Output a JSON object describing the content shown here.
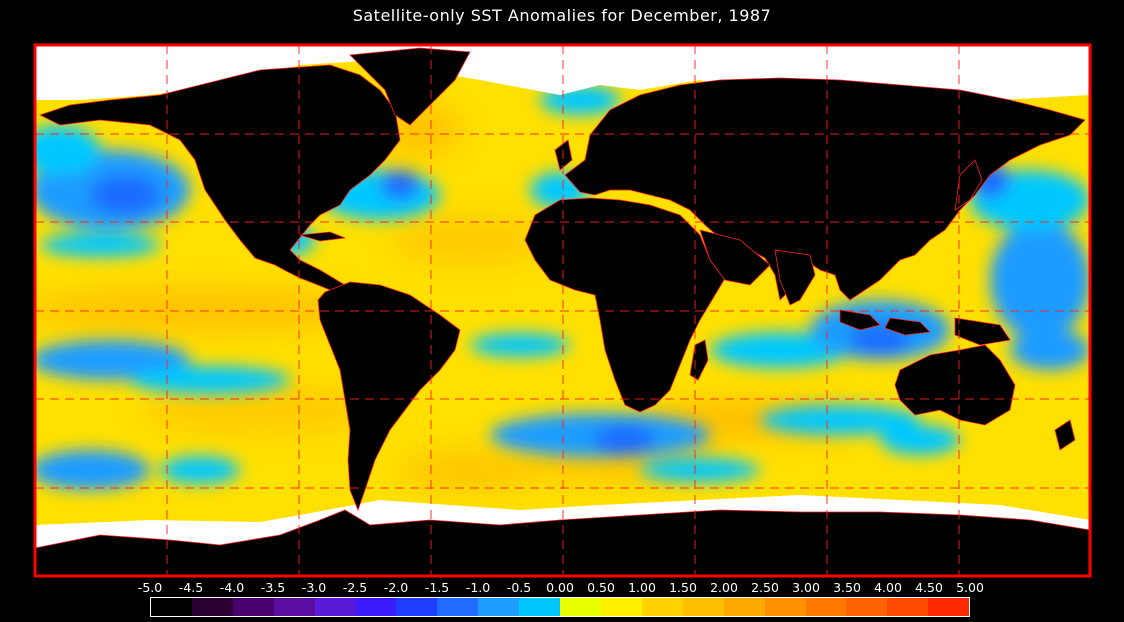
{
  "title": "Satellite-only SST Anomalies for December, 1987",
  "legend": {
    "labels": [
      "-5.0",
      "-4.5",
      "-4.0",
      "-3.5",
      "-3.0",
      "-2.5",
      "-2.0",
      "-1.5",
      "-1.0",
      "-0.5",
      "0.00",
      "0.50",
      "1.00",
      "1.50",
      "2.00",
      "2.50",
      "3.00",
      "3.50",
      "4.00",
      "4.50",
      "5.00"
    ],
    "colors": [
      "#000000",
      "#2a0033",
      "#4b0070",
      "#5a0fa0",
      "#5a1bd8",
      "#3a1cff",
      "#1f3dff",
      "#1f6cff",
      "#1f9cff",
      "#00c8ff",
      "#e8ff00",
      "#fff000",
      "#ffd200",
      "#ffbe00",
      "#ffa800",
      "#ff9000",
      "#ff7a00",
      "#ff6200",
      "#ff4a00",
      "#ff2a00"
    ]
  },
  "map": {
    "ocean_base_color": "#ffe000",
    "land_color": "#000000",
    "ice_color": "#ffffff",
    "frame_color": "#ff0000",
    "grid_color": "#ff0000"
  }
}
